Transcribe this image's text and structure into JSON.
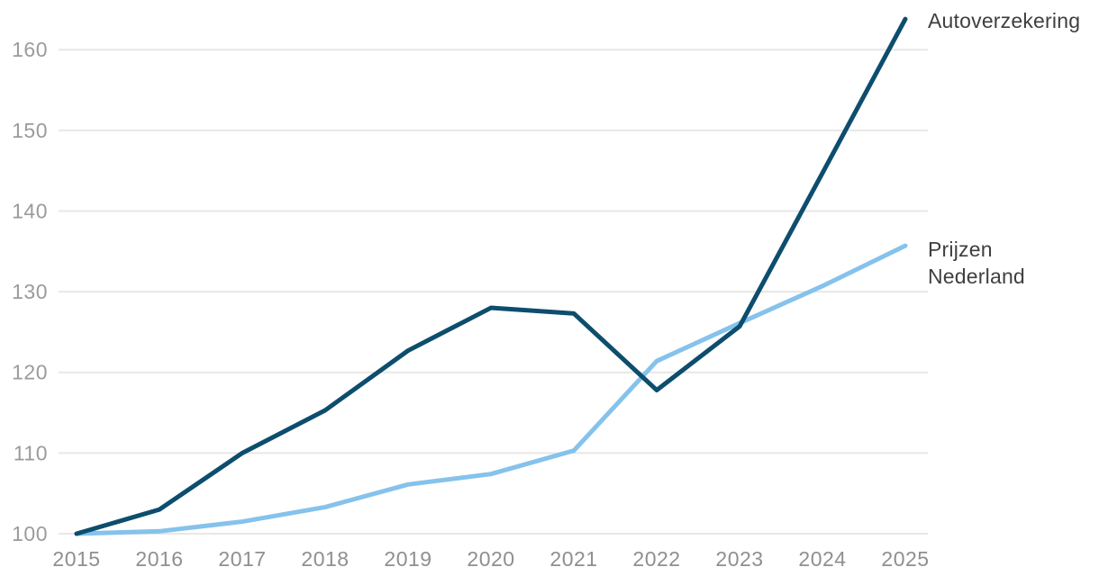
{
  "chart_data": {
    "type": "line",
    "title": "",
    "xlabel": "",
    "ylabel": "",
    "x": [
      2015,
      2016,
      2017,
      2018,
      2019,
      2020,
      2021,
      2022,
      2023,
      2024,
      2025
    ],
    "series": [
      {
        "name": "Autoverzekering",
        "color": "#0d4d6d",
        "values": [
          100,
          103,
          110,
          115.3,
          122.7,
          128,
          127.3,
          117.8,
          125.7,
          144.7,
          163.8
        ]
      },
      {
        "name": "Prijzen Nederland",
        "color": "#85c2ec",
        "values": [
          100,
          100.3,
          101.5,
          103.3,
          106.1,
          107.4,
          110.3,
          121.4,
          126.1,
          130.7,
          135.7
        ]
      }
    ],
    "ylim": [
      100,
      165
    ],
    "yticks": [
      100,
      110,
      120,
      130,
      140,
      150,
      160
    ],
    "grid": "horizontal",
    "legend_position": "direct-labels-right-of-line-ends"
  },
  "colors": {
    "grid": "#e7e7e7",
    "y_tick_text": "#9b9b9b",
    "x_tick_text": "#8f8f8f",
    "series_label_text": "#3f3f3f",
    "background": "#ffffff"
  }
}
